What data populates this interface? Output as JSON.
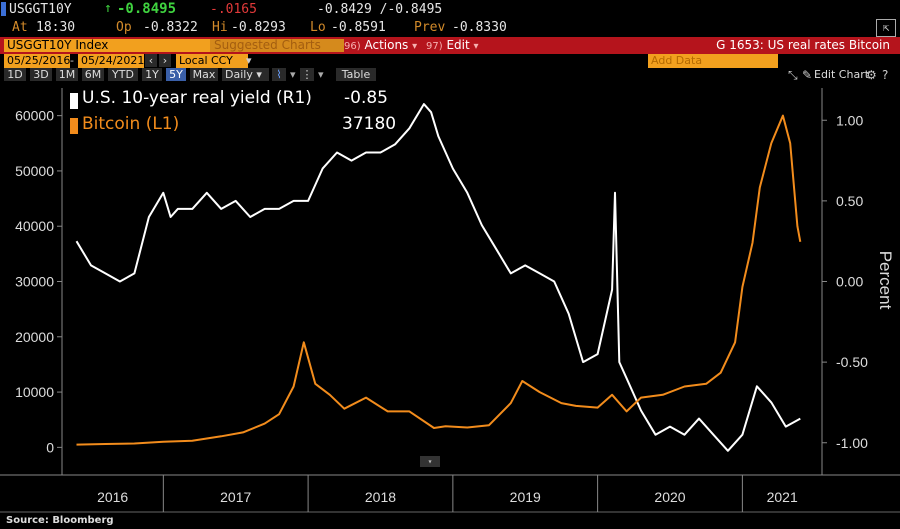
{
  "quote": {
    "ticker": "USGGT10Y",
    "last_arrow": "↑",
    "last": "-0.8495",
    "change": "-.0165",
    "bid_ask": "-0.8429 /-0.8495",
    "at_label": "At",
    "time": "18:30",
    "op_label": "Op",
    "open": "-0.8322",
    "hi_label": "Hi",
    "high": "-0.8293",
    "lo_label": "Lo",
    "low": "-0.8591",
    "prev_label": "Prev",
    "prev": "-0.8330"
  },
  "menu": {
    "index_field": "USGGT10Y Index",
    "suggested": "Suggested Charts",
    "actions_num": "96",
    "actions": "Actions",
    "edit_num": "97",
    "edit": "Edit",
    "chart_title": "G 1653: US real rates Bitcoin"
  },
  "toolbar": {
    "date_start": "05/25/2016",
    "date_end": "05/24/2021",
    "currency": "Local CCY",
    "add_data_placeholder": "Add Data",
    "edit_chart": "Edit Chart",
    "periods": [
      "1D",
      "3D",
      "1M",
      "6M",
      "YTD",
      "1Y",
      "5Y",
      "Max"
    ],
    "selected_period": "5Y",
    "frequency": "Daily",
    "table_label": "Table"
  },
  "legend": {
    "s1_name": "U.S. 10-year real yield (R1)",
    "s1_value": "-0.85",
    "s2_name": "Bitcoin (L1)",
    "s2_value": "37180"
  },
  "source": "Source: Bloomberg",
  "colors": {
    "background": "#000000",
    "series_white": "#ffffff",
    "series_orange": "#f28c1c",
    "menu_red": "#b5141c",
    "accent_orange": "#f2a01e"
  },
  "chart_data": {
    "type": "line",
    "title": "",
    "x_labels": [
      "2016",
      "2017",
      "2018",
      "2019",
      "2020",
      "2021"
    ],
    "left_axis": {
      "label": "",
      "ticks": [
        0,
        10000,
        20000,
        30000,
        40000,
        50000,
        60000
      ],
      "range": [
        -5000,
        65000
      ]
    },
    "right_axis": {
      "label": "Percent",
      "ticks": [
        -1.0,
        -0.5,
        0.0,
        0.5,
        1.0
      ],
      "tick_labels": [
        "-1.00",
        "-0.50",
        "0.00",
        "0.50",
        "1.00"
      ],
      "range": [
        -1.2,
        1.2
      ]
    },
    "grid": false,
    "legend_position": "top-left",
    "series": [
      {
        "name": "U.S. 10-year real yield (R1)",
        "axis": "right",
        "x": [
          2016.4,
          2016.5,
          2016.6,
          2016.7,
          2016.8,
          2016.9,
          2017.0,
          2017.05,
          2017.1,
          2017.2,
          2017.3,
          2017.4,
          2017.5,
          2017.6,
          2017.7,
          2017.8,
          2017.9,
          2018.0,
          2018.1,
          2018.2,
          2018.3,
          2018.4,
          2018.5,
          2018.6,
          2018.7,
          2018.8,
          2018.85,
          2018.9,
          2019.0,
          2019.1,
          2019.2,
          2019.3,
          2019.4,
          2019.5,
          2019.6,
          2019.7,
          2019.8,
          2019.9,
          2020.0,
          2020.1,
          2020.12,
          2020.15,
          2020.2,
          2020.3,
          2020.4,
          2020.5,
          2020.6,
          2020.7,
          2020.8,
          2020.9,
          2021.0,
          2021.1,
          2021.2,
          2021.3,
          2021.4
        ],
        "y": [
          0.25,
          0.1,
          0.05,
          0.0,
          0.05,
          0.4,
          0.55,
          0.4,
          0.45,
          0.45,
          0.55,
          0.45,
          0.5,
          0.4,
          0.45,
          0.45,
          0.5,
          0.5,
          0.7,
          0.8,
          0.75,
          0.8,
          0.8,
          0.85,
          0.95,
          1.1,
          1.05,
          0.9,
          0.7,
          0.55,
          0.35,
          0.2,
          0.05,
          0.1,
          0.05,
          0.0,
          -0.2,
          -0.5,
          -0.45,
          -0.05,
          0.55,
          -0.5,
          -0.6,
          -0.8,
          -0.95,
          -0.9,
          -0.95,
          -0.85,
          -0.95,
          -1.05,
          -0.95,
          -0.65,
          -0.75,
          -0.9,
          -0.85
        ]
      },
      {
        "name": "Bitcoin (L1)",
        "axis": "left",
        "x": [
          2016.4,
          2016.6,
          2016.8,
          2017.0,
          2017.2,
          2017.4,
          2017.55,
          2017.7,
          2017.8,
          2017.9,
          2017.97,
          2018.05,
          2018.15,
          2018.25,
          2018.4,
          2018.55,
          2018.7,
          2018.87,
          2018.95,
          2019.1,
          2019.25,
          2019.4,
          2019.48,
          2019.6,
          2019.75,
          2019.85,
          2020.0,
          2020.1,
          2020.2,
          2020.3,
          2020.45,
          2020.6,
          2020.75,
          2020.85,
          2020.95,
          2021.0,
          2021.07,
          2021.12,
          2021.2,
          2021.28,
          2021.33,
          2021.38,
          2021.4
        ],
        "y": [
          500,
          600,
          700,
          1000,
          1200,
          2000,
          2700,
          4300,
          6000,
          11000,
          19000,
          11500,
          9500,
          7000,
          9000,
          6500,
          6500,
          3500,
          3800,
          3600,
          4000,
          8000,
          12000,
          10000,
          8000,
          7500,
          7200,
          9500,
          6500,
          9000,
          9500,
          11000,
          11500,
          13500,
          19000,
          29000,
          37000,
          47000,
          55000,
          60000,
          55000,
          40000,
          37180
        ]
      }
    ]
  }
}
